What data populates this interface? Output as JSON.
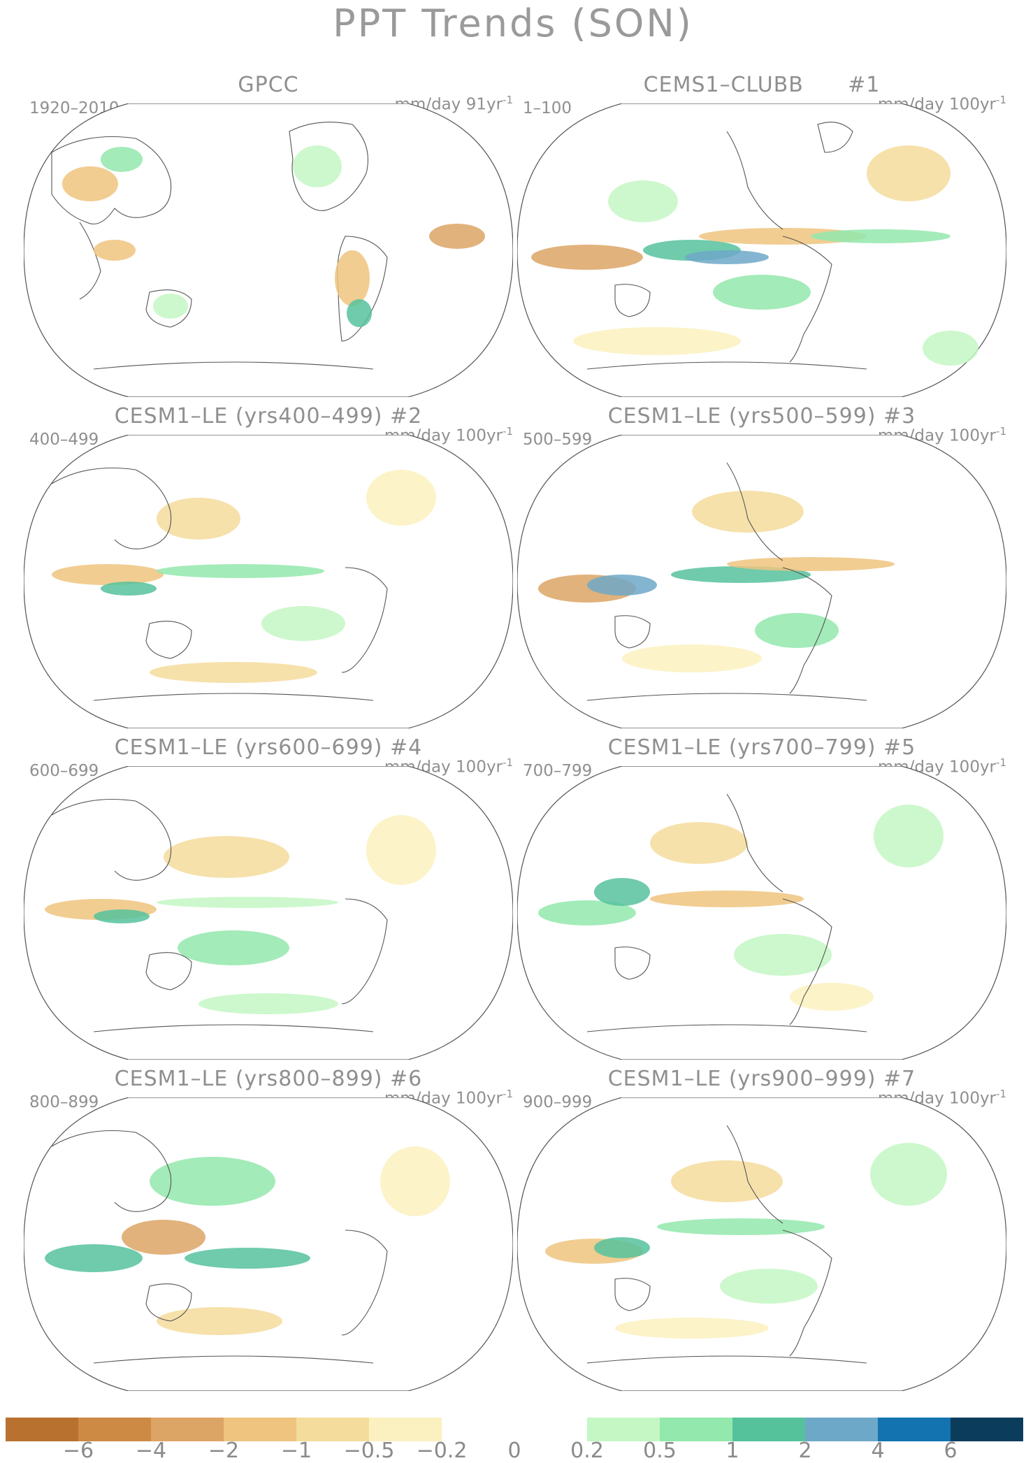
{
  "title": "PPT Trends (SON)",
  "panels": [
    {
      "title": "GPCC",
      "range": "1920–2010",
      "units": "mm/day 91yr",
      "units_sup": "-1",
      "number": ""
    },
    {
      "title": "CEMS1–CLUBB",
      "range": "1–100",
      "units": "mm/day 100yr",
      "units_sup": "-1",
      "number": "#1"
    },
    {
      "title": "CESM1–LE (yrs400–499) #2",
      "range": "400–499",
      "units": "mm/day 100yr",
      "units_sup": "-1",
      "number": ""
    },
    {
      "title": "CESM1–LE (yrs500–599) #3",
      "range": "500–599",
      "units": "mm/day 100yr",
      "units_sup": "-1",
      "number": ""
    },
    {
      "title": "CESM1–LE (yrs600–699) #4",
      "range": "600–699",
      "units": "mm/day 100yr",
      "units_sup": "-1",
      "number": ""
    },
    {
      "title": "CESM1–LE (yrs700–799) #5",
      "range": "700–799",
      "units": "mm/day 100yr",
      "units_sup": "-1",
      "number": ""
    },
    {
      "title": "CESM1–LE (yrs800–899) #6",
      "range": "800–899",
      "units": "mm/day 100yr",
      "units_sup": "-1",
      "number": ""
    },
    {
      "title": "CESM1–LE (yrs900–999) #7",
      "range": "900–999",
      "units": "mm/day 100yr",
      "units_sup": "-1",
      "number": ""
    }
  ],
  "colorbar": {
    "colors": [
      "#b8712e",
      "#cc8a45",
      "#dca565",
      "#eec47f",
      "#f4dc9c",
      "#fbf1c0",
      "#ffffff",
      "#ffffff",
      "#c4f7c4",
      "#93e8ad",
      "#56c29c",
      "#6ea8c8",
      "#1273b0",
      "#0c3c5c"
    ],
    "labels": [
      "−6",
      "−4",
      "−2",
      "−1",
      "−0.5",
      "−0.2",
      "0",
      "0.2",
      "0.5",
      "1",
      "2",
      "4",
      "6"
    ]
  }
}
